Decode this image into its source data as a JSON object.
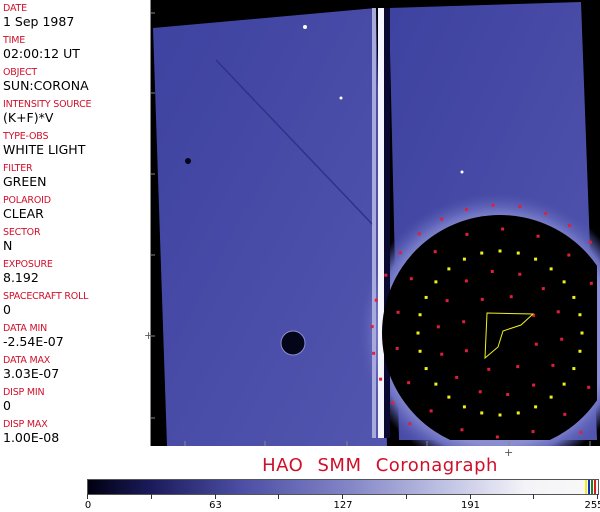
{
  "metadata": [
    {
      "label": "DATE",
      "value": "1 Sep 1987"
    },
    {
      "label": "TIME",
      "value": "02:00:12 UT"
    },
    {
      "label": "OBJECT",
      "value": "SUN:CORONA"
    },
    {
      "label": "INTENSITY SOURCE",
      "value": "(K+F)*V"
    },
    {
      "label": "TYPE-OBS",
      "value": "WHITE LIGHT"
    },
    {
      "label": "FILTER",
      "value": "GREEN"
    },
    {
      "label": "POLAROID",
      "value": "CLEAR"
    },
    {
      "label": "SECTOR",
      "value": "N"
    },
    {
      "label": "EXPOSURE",
      "value": "8.192"
    },
    {
      "label": "SPACECRAFT ROLL",
      "value": "0"
    },
    {
      "label": "DATA MIN",
      "value": "-2.54E-07"
    },
    {
      "label": "DATA MAX",
      "value": "3.03E-07"
    },
    {
      "label": "DISP MIN",
      "value": "0"
    },
    {
      "label": "DISP MAX",
      "value": "1.00E-08"
    }
  ],
  "title": "HAO  SMM Coronagraph",
  "colorbar": {
    "ticks": [
      "0",
      "63",
      "127",
      "191",
      "255"
    ],
    "min": 0,
    "max": 255
  },
  "colors": {
    "label": "#d0102a",
    "background_field": "#4a4ea6",
    "occulter": "#000000",
    "marker_red": "#e0203a",
    "marker_yellow": "#f0f020"
  }
}
